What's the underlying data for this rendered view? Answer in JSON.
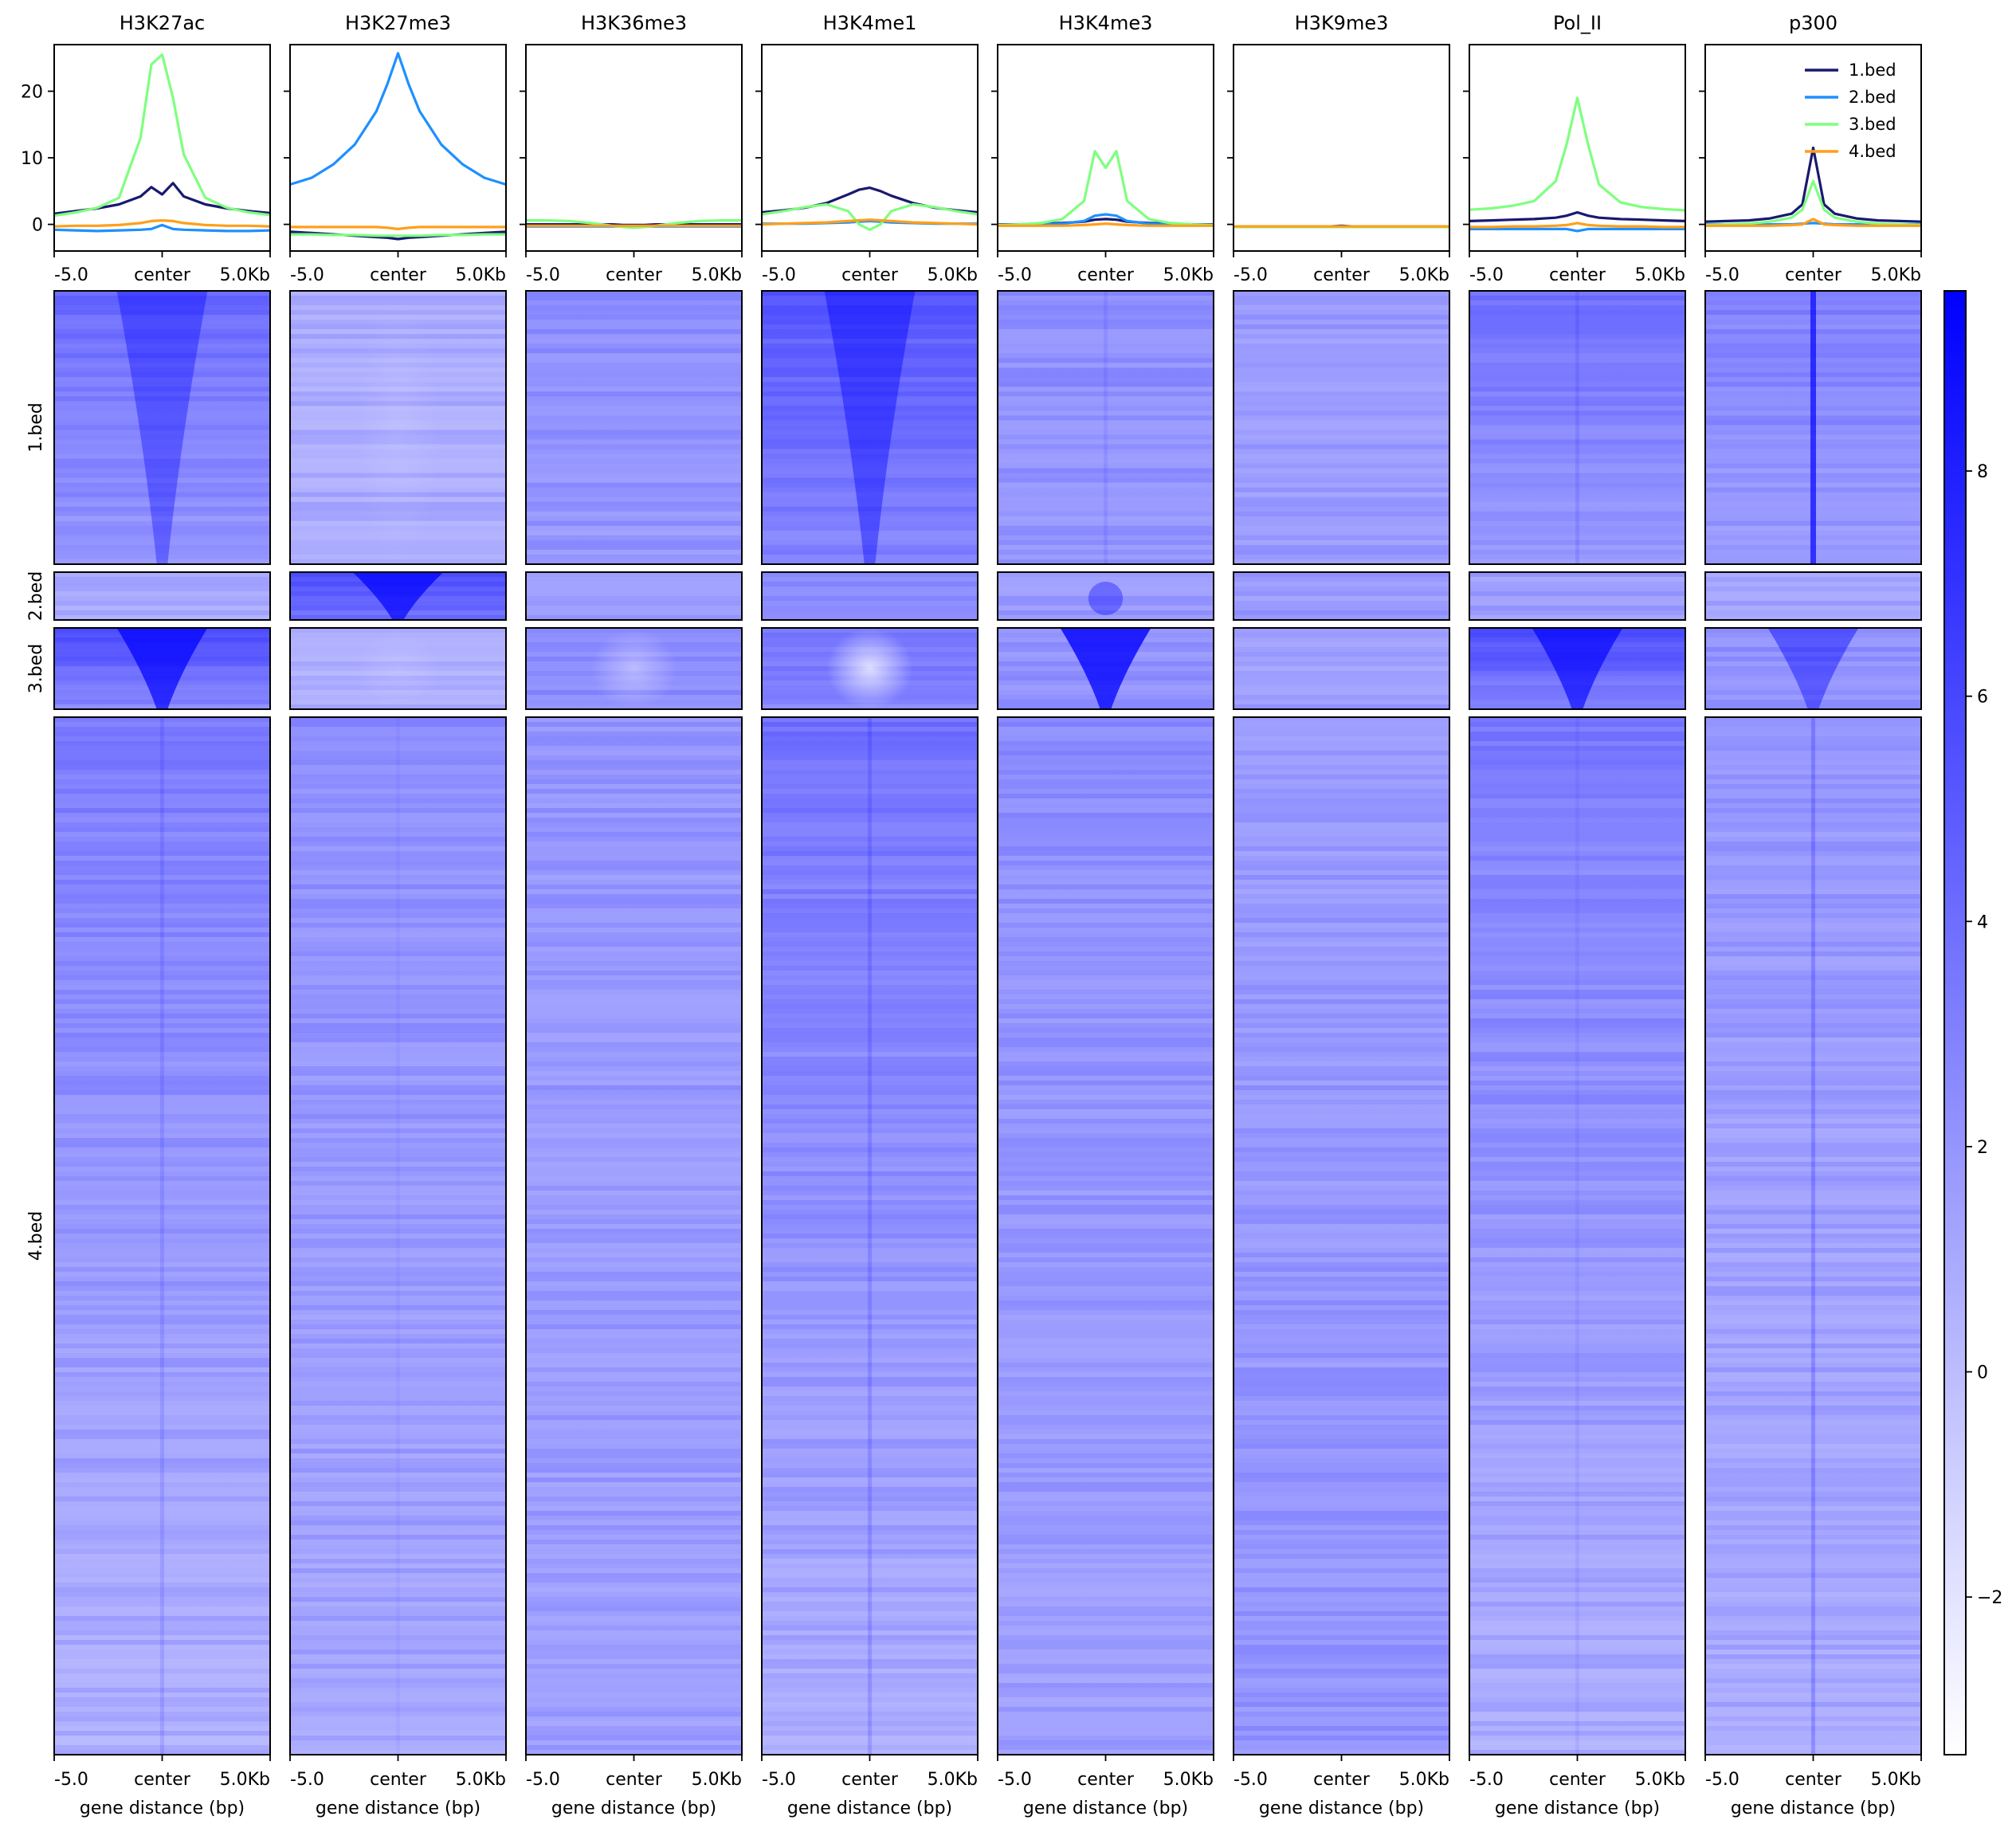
{
  "chart_data": {
    "type": "heatmap",
    "description_kind": "deepTools plotHeatmap: profile plots above heatmaps, 8 signal tracks x 4 region groups",
    "columns": [
      "H3K27ac",
      "H3K27me3",
      "H3K36me3",
      "H3K4me1",
      "H3K4me3",
      "H3K9me3",
      "Pol_II",
      "p300"
    ],
    "groups": [
      "1.bed",
      "2.bed",
      "3.bed",
      "4.bed"
    ],
    "group_colors": {
      "1.bed": "#191970",
      "2.bed": "#1e90ff",
      "3.bed": "#7fff7f",
      "4.bed": "#ff9f1a"
    },
    "x_ticks": [
      "-5.0",
      "center",
      "5.0Kb"
    ],
    "x_range_bp": [
      -5000,
      5000
    ],
    "xlabel": "gene distance (bp)",
    "profile_ylim": [
      -4,
      27
    ],
    "profile_yticks": [
      0,
      10,
      20
    ],
    "colorbar": {
      "ticks": [
        -2,
        0,
        2,
        4,
        6,
        8
      ],
      "range": [
        -3.4,
        9.6
      ],
      "color_low": "#ffffff",
      "color_high": "#0000ff"
    },
    "legend": {
      "placement": "top-right of p300 profile",
      "entries": [
        "1.bed",
        "2.bed",
        "3.bed",
        "4.bed"
      ]
    },
    "profile_x": [
      -5000,
      -4000,
      -3000,
      -2000,
      -1000,
      -500,
      0,
      500,
      1000,
      2000,
      3000,
      4000,
      5000
    ],
    "profiles": {
      "H3K27ac": {
        "1.bed": [
          1.6,
          2.0,
          2.4,
          3.0,
          4.2,
          5.6,
          4.5,
          6.2,
          4.2,
          3.0,
          2.4,
          2.0,
          1.7
        ],
        "2.bed": [
          -0.8,
          -0.9,
          -1.0,
          -0.9,
          -0.8,
          -0.7,
          -0.1,
          -0.7,
          -0.8,
          -0.9,
          -1.0,
          -1.0,
          -0.9
        ],
        "3.bed": [
          1.3,
          1.8,
          2.5,
          4.0,
          13.0,
          24.0,
          25.5,
          19.0,
          10.5,
          4.0,
          2.5,
          1.8,
          1.4
        ],
        "4.bed": [
          -0.3,
          -0.2,
          -0.2,
          -0.1,
          0.2,
          0.5,
          0.6,
          0.5,
          0.2,
          -0.1,
          -0.2,
          -0.2,
          -0.3
        ]
      },
      "H3K27me3": {
        "1.bed": [
          -1.1,
          -1.3,
          -1.5,
          -1.7,
          -1.9,
          -2.0,
          -2.2,
          -2.0,
          -1.9,
          -1.7,
          -1.5,
          -1.3,
          -1.1
        ],
        "2.bed": [
          6.0,
          7.0,
          9.0,
          12.0,
          17.0,
          21.0,
          25.7,
          21.0,
          17.0,
          12.0,
          9.0,
          7.0,
          6.0
        ],
        "3.bed": [
          -1.5,
          -1.5,
          -1.6,
          -1.6,
          -1.7,
          -1.7,
          -1.7,
          -1.7,
          -1.7,
          -1.6,
          -1.6,
          -1.5,
          -1.5
        ],
        "4.bed": [
          -0.4,
          -0.4,
          -0.4,
          -0.4,
          -0.4,
          -0.5,
          -0.7,
          -0.5,
          -0.4,
          -0.4,
          -0.4,
          -0.4,
          -0.4
        ]
      },
      "H3K36me3": {
        "1.bed": [
          0.0,
          0.0,
          0.0,
          0.0,
          0.0,
          -0.1,
          -0.1,
          -0.1,
          0.0,
          0.0,
          0.0,
          0.0,
          0.0
        ],
        "2.bed": [
          -0.3,
          -0.3,
          -0.3,
          -0.3,
          -0.3,
          -0.3,
          -0.3,
          -0.3,
          -0.3,
          -0.3,
          -0.3,
          -0.3,
          -0.3
        ],
        "3.bed": [
          0.6,
          0.6,
          0.5,
          0.2,
          -0.2,
          -0.4,
          -0.5,
          -0.4,
          -0.2,
          0.2,
          0.5,
          0.6,
          0.6
        ],
        "4.bed": [
          -0.2,
          -0.2,
          -0.2,
          -0.2,
          -0.2,
          -0.2,
          -0.2,
          -0.2,
          -0.2,
          -0.2,
          -0.2,
          -0.2,
          -0.2
        ]
      },
      "H3K4me1": {
        "1.bed": [
          1.8,
          2.1,
          2.5,
          3.2,
          4.5,
          5.2,
          5.5,
          5.0,
          4.3,
          3.2,
          2.5,
          2.1,
          1.8
        ],
        "2.bed": [
          0.1,
          0.1,
          0.1,
          0.2,
          0.3,
          0.4,
          0.5,
          0.4,
          0.3,
          0.2,
          0.1,
          0.1,
          0.1
        ],
        "3.bed": [
          1.5,
          2.0,
          2.6,
          3.0,
          2.0,
          0.0,
          -0.8,
          0.0,
          2.0,
          3.0,
          2.6,
          2.0,
          1.5
        ],
        "4.bed": [
          0.0,
          0.1,
          0.2,
          0.3,
          0.5,
          0.6,
          0.7,
          0.6,
          0.5,
          0.3,
          0.2,
          0.1,
          0.0
        ]
      },
      "H3K4me3": {
        "1.bed": [
          0.0,
          0.0,
          0.1,
          0.2,
          0.4,
          0.7,
          0.8,
          0.7,
          0.4,
          0.2,
          0.1,
          0.0,
          0.0
        ],
        "2.bed": [
          -0.1,
          -0.1,
          0.0,
          0.1,
          0.5,
          1.3,
          1.5,
          1.3,
          0.5,
          0.1,
          0.0,
          -0.1,
          -0.1
        ],
        "3.bed": [
          -0.1,
          0.0,
          0.2,
          0.8,
          3.5,
          11.0,
          8.5,
          11.0,
          3.5,
          0.8,
          0.2,
          0.0,
          -0.1
        ],
        "4.bed": [
          -0.2,
          -0.2,
          -0.2,
          -0.2,
          -0.1,
          0.0,
          0.1,
          0.0,
          -0.1,
          -0.2,
          -0.2,
          -0.2,
          -0.2
        ]
      },
      "H3K9me3": {
        "1.bed": [
          -0.3,
          -0.3,
          -0.3,
          -0.3,
          -0.3,
          -0.3,
          -0.2,
          -0.3,
          -0.3,
          -0.3,
          -0.3,
          -0.3,
          -0.3
        ],
        "2.bed": [
          -0.3,
          -0.3,
          -0.3,
          -0.3,
          -0.3,
          -0.3,
          -0.3,
          -0.3,
          -0.3,
          -0.3,
          -0.3,
          -0.3,
          -0.3
        ],
        "3.bed": [
          -0.4,
          -0.4,
          -0.4,
          -0.4,
          -0.4,
          -0.4,
          -0.4,
          -0.4,
          -0.4,
          -0.4,
          -0.4,
          -0.4,
          -0.4
        ],
        "4.bed": [
          -0.3,
          -0.3,
          -0.3,
          -0.3,
          -0.3,
          -0.3,
          -0.3,
          -0.3,
          -0.3,
          -0.3,
          -0.3,
          -0.3,
          -0.3
        ]
      },
      "Pol_II": {
        "1.bed": [
          0.5,
          0.6,
          0.7,
          0.8,
          1.0,
          1.3,
          1.8,
          1.3,
          1.0,
          0.8,
          0.7,
          0.6,
          0.5
        ],
        "2.bed": [
          -0.7,
          -0.7,
          -0.7,
          -0.7,
          -0.7,
          -0.7,
          -1.0,
          -0.7,
          -0.7,
          -0.7,
          -0.7,
          -0.7,
          -0.7
        ],
        "3.bed": [
          2.2,
          2.4,
          2.8,
          3.5,
          6.5,
          12.0,
          19.0,
          12.0,
          6.0,
          3.3,
          2.6,
          2.3,
          2.1
        ],
        "4.bed": [
          -0.4,
          -0.4,
          -0.3,
          -0.3,
          -0.2,
          -0.1,
          0.2,
          -0.1,
          -0.2,
          -0.3,
          -0.3,
          -0.4,
          -0.4
        ]
      },
      "p300": {
        "1.bed": [
          0.4,
          0.5,
          0.6,
          0.9,
          1.6,
          3.0,
          11.5,
          3.0,
          1.6,
          0.9,
          0.6,
          0.5,
          0.4
        ],
        "2.bed": [
          0.0,
          0.0,
          0.0,
          0.0,
          0.0,
          0.1,
          0.2,
          0.1,
          0.0,
          0.0,
          0.0,
          0.0,
          0.0
        ],
        "3.bed": [
          -0.1,
          0.0,
          0.1,
          0.4,
          1.0,
          2.2,
          6.5,
          2.2,
          1.0,
          0.4,
          0.1,
          0.0,
          -0.1
        ],
        "4.bed": [
          -0.2,
          -0.2,
          -0.2,
          -0.2,
          -0.1,
          0.0,
          0.8,
          0.0,
          -0.1,
          -0.2,
          -0.2,
          -0.2,
          -0.2
        ]
      }
    },
    "heatmap_signal": {
      "note": "approximate mean signal per (track, group): background level at flanks (top rows, bottom rows), central enrichment, and profile shape",
      "H3K27ac": {
        "1.bed": {
          "top": 4.5,
          "bottom": 1.8,
          "center": 3.0,
          "shape": "funnel"
        },
        "2.bed": {
          "top": 0.8,
          "bottom": 0.8,
          "center": 0.6,
          "shape": "flat"
        },
        "3.bed": {
          "top": 6.5,
          "bottom": 2.5,
          "center": 6.0,
          "shape": "funnel"
        },
        "4.bed": {
          "top": 3.5,
          "bottom": 0.4,
          "center": 0.9,
          "shape": "line"
        }
      },
      "H3K27me3": {
        "1.bed": {
          "top": 0.6,
          "bottom": 0.7,
          "center": -0.4,
          "shape": "dip"
        },
        "2.bed": {
          "top": 6.0,
          "bottom": 4.0,
          "center": 6.0,
          "shape": "funnel"
        },
        "3.bed": {
          "top": 0.5,
          "bottom": 0.7,
          "center": -0.5,
          "shape": "dip"
        },
        "4.bed": {
          "top": 2.5,
          "bottom": 1.0,
          "center": 0.3,
          "shape": "line"
        }
      },
      "H3K36me3": {
        "1.bed": {
          "top": 2.4,
          "bottom": 1.8,
          "center": 0.0,
          "shape": "flat"
        },
        "2.bed": {
          "top": 1.6,
          "bottom": 1.6,
          "center": 0.0,
          "shape": "flat"
        },
        "3.bed": {
          "top": 2.8,
          "bottom": 2.4,
          "center": -1.5,
          "shape": "dip"
        },
        "4.bed": {
          "top": 2.0,
          "bottom": 1.4,
          "center": 0.0,
          "shape": "flat"
        }
      },
      "H3K4me1": {
        "1.bed": {
          "top": 5.5,
          "bottom": 2.8,
          "center": 3.5,
          "shape": "funnel"
        },
        "2.bed": {
          "top": 2.2,
          "bottom": 2.2,
          "center": 0.5,
          "shape": "flat"
        },
        "3.bed": {
          "top": 4.0,
          "bottom": 2.5,
          "center": -3.0,
          "shape": "dip"
        },
        "4.bed": {
          "top": 4.0,
          "bottom": 0.6,
          "center": 1.2,
          "shape": "line"
        }
      },
      "H3K4me3": {
        "1.bed": {
          "top": 2.5,
          "bottom": 1.8,
          "center": 0.6,
          "shape": "line"
        },
        "2.bed": {
          "top": 1.6,
          "bottom": 1.6,
          "center": 2.2,
          "shape": "blob"
        },
        "3.bed": {
          "top": 2.0,
          "bottom": 2.0,
          "center": 6.5,
          "shape": "funnel"
        },
        "4.bed": {
          "top": 2.4,
          "bottom": 1.4,
          "center": 0.4,
          "shape": "flat"
        }
      },
      "H3K9me3": {
        "1.bed": {
          "top": 1.6,
          "bottom": 1.6,
          "center": 0.0,
          "shape": "flat"
        },
        "2.bed": {
          "top": 1.6,
          "bottom": 1.6,
          "center": 0.0,
          "shape": "flat"
        },
        "3.bed": {
          "top": 1.4,
          "bottom": 1.4,
          "center": 0.0,
          "shape": "flat"
        },
        "4.bed": {
          "top": 1.6,
          "bottom": 2.0,
          "center": 0.0,
          "shape": "flat"
        }
      },
      "Pol_II": {
        "1.bed": {
          "top": 4.0,
          "bottom": 1.8,
          "center": 0.8,
          "shape": "line"
        },
        "2.bed": {
          "top": 1.4,
          "bottom": 1.4,
          "center": 0.2,
          "shape": "flat"
        },
        "3.bed": {
          "top": 6.5,
          "bottom": 2.8,
          "center": 5.5,
          "shape": "funnel"
        },
        "4.bed": {
          "top": 3.5,
          "bottom": 0.6,
          "center": 0.5,
          "shape": "line"
        }
      },
      "p300": {
        "1.bed": {
          "top": 3.2,
          "bottom": 1.6,
          "center": 5.5,
          "shape": "line"
        },
        "2.bed": {
          "top": 1.2,
          "bottom": 1.2,
          "center": 0.5,
          "shape": "flat"
        },
        "3.bed": {
          "top": 2.4,
          "bottom": 1.8,
          "center": 3.5,
          "shape": "funnel"
        },
        "4.bed": {
          "top": 2.0,
          "bottom": 0.8,
          "center": 1.6,
          "shape": "line"
        }
      }
    }
  }
}
